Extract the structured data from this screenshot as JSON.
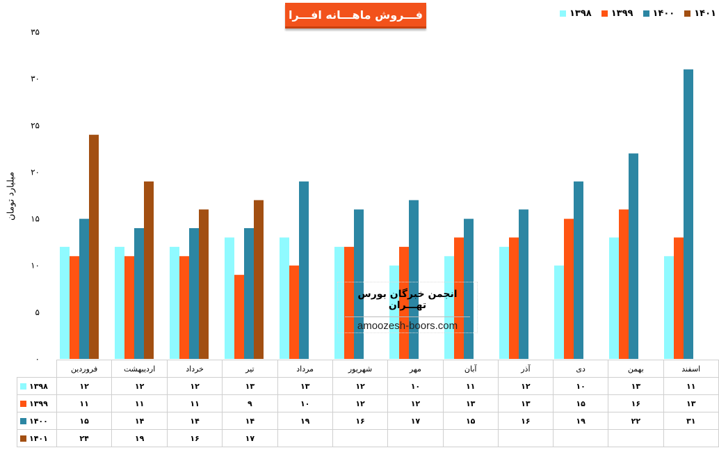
{
  "chart_data": {
    "type": "bar",
    "title": "فـــروش ماهـــانه افـــرا",
    "ylabel": "میلیارد تومان",
    "xlabel": "",
    "ylim": [
      0,
      35
    ],
    "ytick_labels": [
      "۰",
      "۵",
      "۱۰",
      "۱۵",
      "۲۰",
      "۲۵",
      "۳۰",
      "۳۵"
    ],
    "categories": [
      "فروردین",
      "اردیبهشت",
      "خرداد",
      "تیر",
      "مرداد",
      "شهریور",
      "مهر",
      "آبان",
      "آذر",
      "دی",
      "بهمن",
      "اسفند"
    ],
    "series": [
      {
        "name": "۱۳۹۸",
        "color": "#8ffaff",
        "values": [
          12,
          12,
          12,
          13,
          13,
          12,
          10,
          11,
          12,
          10,
          13,
          11
        ],
        "labels": [
          "۱۲",
          "۱۲",
          "۱۲",
          "۱۳",
          "۱۳",
          "۱۲",
          "۱۰",
          "۱۱",
          "۱۲",
          "۱۰",
          "۱۳",
          "۱۱"
        ]
      },
      {
        "name": "۱۳۹۹",
        "color": "#ff5412",
        "values": [
          11,
          11,
          11,
          9,
          10,
          12,
          12,
          13,
          13,
          15,
          16,
          13
        ],
        "labels": [
          "۱۱",
          "۱۱",
          "۱۱",
          "۹",
          "۱۰",
          "۱۲",
          "۱۲",
          "۱۳",
          "۱۳",
          "۱۵",
          "۱۶",
          "۱۳"
        ]
      },
      {
        "name": "۱۴۰۰",
        "color": "#2c86a3",
        "values": [
          15,
          14,
          14,
          14,
          19,
          16,
          17,
          15,
          16,
          19,
          22,
          31
        ],
        "labels": [
          "۱۵",
          "۱۴",
          "۱۴",
          "۱۴",
          "۱۹",
          "۱۶",
          "۱۷",
          "۱۵",
          "۱۶",
          "۱۹",
          "۲۲",
          "۳۱"
        ]
      },
      {
        "name": "۱۴۰۱",
        "color": "#a24f12",
        "values": [
          24,
          19,
          16,
          17,
          null,
          null,
          null,
          null,
          null,
          null,
          null,
          null
        ],
        "labels": [
          "۲۴",
          "۱۹",
          "۱۶",
          "۱۷",
          "",
          "",
          "",
          "",
          "",
          "",
          "",
          ""
        ]
      }
    ],
    "legend_position": "top-right",
    "grid": false
  },
  "watermark": {
    "title": "انجمن خبرگان بورس تهـــران",
    "url": "amoozesh-boors.com"
  }
}
